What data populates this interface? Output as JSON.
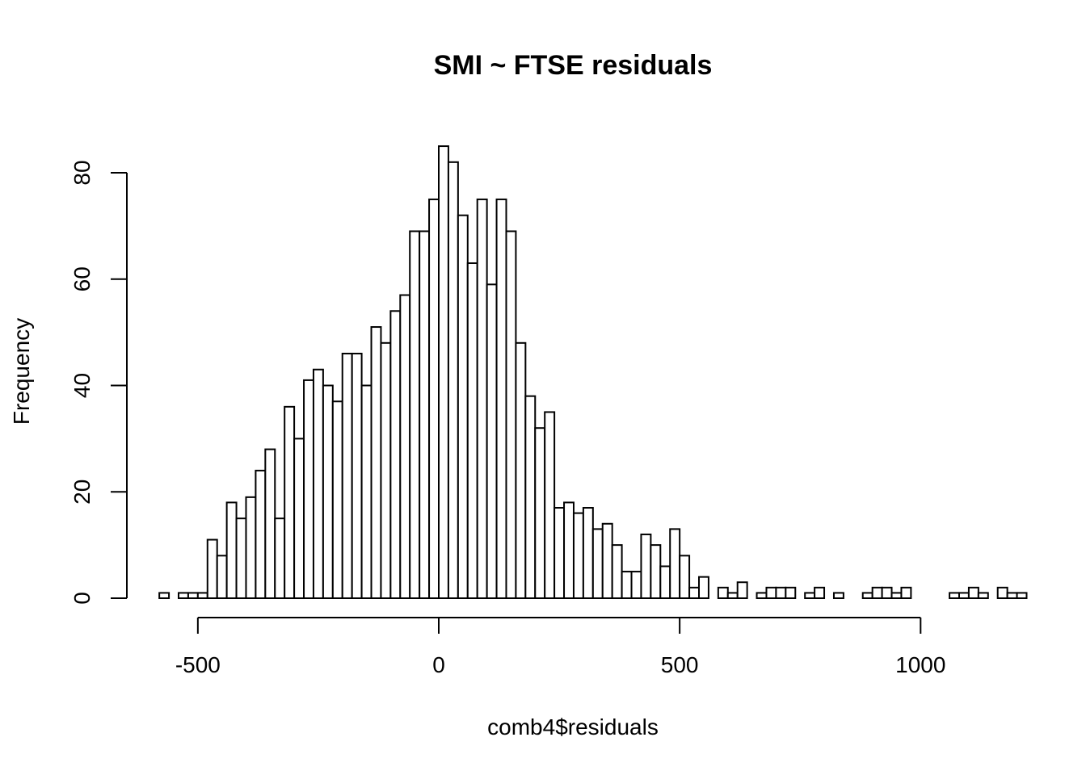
{
  "chart_data": {
    "type": "bar",
    "title": "SMI ~ FTSE residuals",
    "xlabel": "comb4$residuals",
    "ylabel": "Frequency",
    "bin_width": 20,
    "bins_start": -580,
    "values": [
      1,
      0,
      1,
      1,
      1,
      11,
      8,
      18,
      15,
      19,
      24,
      28,
      15,
      36,
      30,
      41,
      43,
      40,
      37,
      46,
      46,
      40,
      51,
      48,
      54,
      57,
      69,
      69,
      75,
      85,
      82,
      72,
      63,
      75,
      59,
      75,
      69,
      48,
      38,
      32,
      35,
      17,
      18,
      16,
      17,
      13,
      14,
      10,
      5,
      5,
      12,
      10,
      6,
      13,
      8,
      2,
      4,
      0,
      2,
      1,
      3,
      0,
      1,
      2,
      2,
      2,
      0,
      1,
      2,
      0,
      1,
      0,
      0,
      1,
      2,
      2,
      1,
      2,
      0,
      0,
      0,
      0,
      1,
      1,
      2,
      1,
      0,
      2,
      1,
      1
    ],
    "xlim": [
      -500,
      1000
    ],
    "x_ticks": [
      -500,
      0,
      500,
      1000
    ],
    "x_tick_labels": [
      "-500",
      "0",
      "500",
      "1000"
    ],
    "ylim": [
      0,
      80
    ],
    "y_ticks": [
      0,
      20,
      40,
      60,
      80
    ],
    "y_tick_labels": [
      "0",
      "20",
      "40",
      "60",
      "80"
    ],
    "bar_fill": "#ffffff",
    "bar_stroke": "#000000",
    "grid": false,
    "legend": "none"
  }
}
